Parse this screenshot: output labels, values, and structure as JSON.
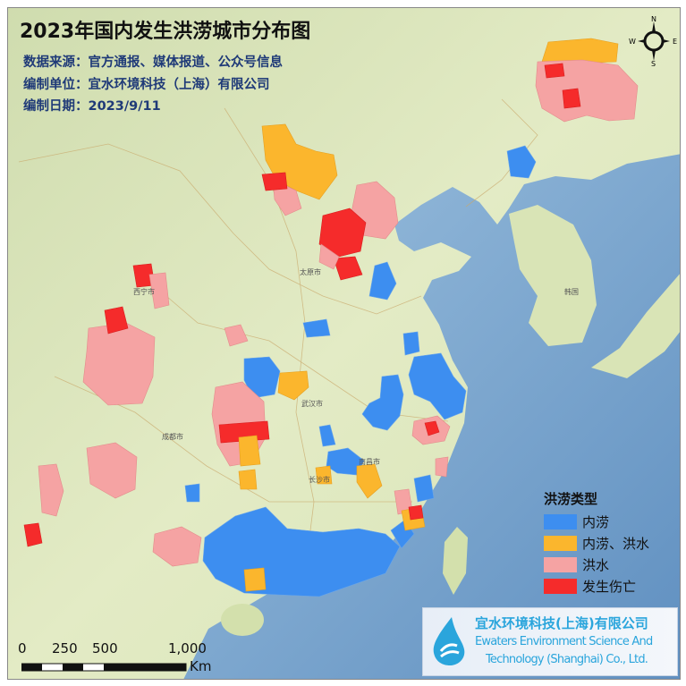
{
  "title": "2023年国内发生洪涝城市分布图",
  "info": {
    "source": "数据来源：官方通报、媒体报道、公众号信息",
    "compiler": "编制单位：宜水环境科技（上海）有限公司",
    "date": "编制日期：2023/9/11"
  },
  "legend": {
    "title": "洪涝类型",
    "items": [
      {
        "label": "内涝",
        "color": "#3d8ef0"
      },
      {
        "label": "内涝、洪水",
        "color": "#fbb62d"
      },
      {
        "label": "洪水",
        "color": "#f5a3a3"
      },
      {
        "label": "发生伤亡",
        "color": "#f52b2b"
      }
    ]
  },
  "logo": {
    "name_cn": "宜水环境科技(上海)有限公司",
    "name_en_1": "Ewaters Environment Science And",
    "name_en_2": "Technology (Shanghai) Co., Ltd."
  },
  "scale_bar": {
    "ticks": [
      "0",
      "250",
      "500",
      "1,000"
    ],
    "unit": "Km"
  },
  "compass": {
    "n": "N",
    "s": "S",
    "e": "E",
    "w": "W"
  },
  "map_labels": {
    "wuhan": "武汉市",
    "nanchang": "南昌市",
    "changsha": "长沙市",
    "chengdu": "成都市",
    "taiyuan": "太原市",
    "xining": "西宁市",
    "korea": "韩国"
  },
  "colors": {
    "sea": "#86aed3",
    "land": "#dfe7bd"
  }
}
